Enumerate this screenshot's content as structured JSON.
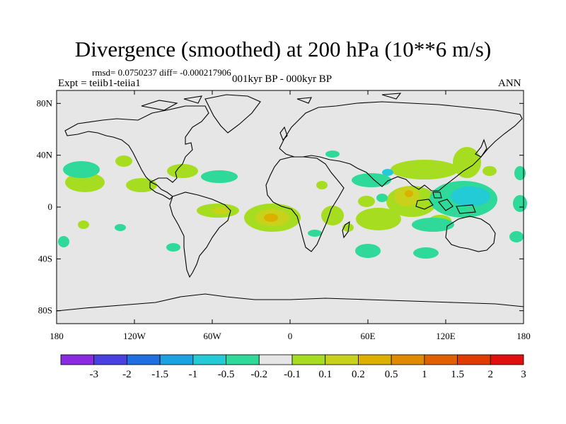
{
  "title": "Divergence (smoothed) at 200 hPa (10**6 m/s)",
  "stats": "rmsd= 0.0750237 diff= -0.000217906",
  "experiment": "Expt = teiib1-teiia1",
  "period": "001kyr BP - 000kyr BP",
  "season": "ANN",
  "map": {
    "projection": "cylindrical equidistant",
    "background_color": "#e6e6e6",
    "x_tick_labels": [
      "180",
      "120W",
      "60W",
      "0",
      "60E",
      "120E",
      "180"
    ],
    "y_tick_labels": [
      "80N",
      "40N",
      "0",
      "40S",
      "80S"
    ]
  },
  "colorbar": {
    "colors": [
      "#8a2be2",
      "#4a3fe0",
      "#1f6fe0",
      "#1aa3e0",
      "#22cbd6",
      "#2fd99a",
      "#e6e6e6",
      "#a6dd20",
      "#c9d21a",
      "#ddb000",
      "#e08a00",
      "#e06000",
      "#e03c00",
      "#e01010"
    ],
    "labels": [
      "-3",
      "-2",
      "-1.5",
      "-1",
      "-0.5",
      "-0.2",
      "-0.1",
      "0.1",
      "0.2",
      "0.5",
      "1",
      "1.5",
      "2",
      "3"
    ]
  }
}
